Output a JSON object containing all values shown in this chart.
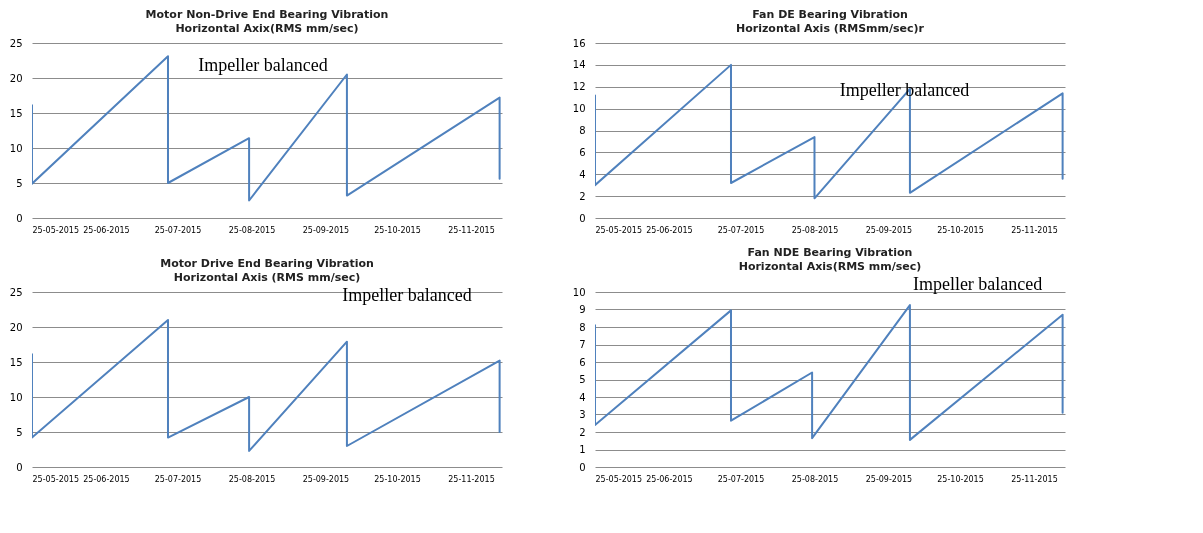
{
  "chart_data": [
    {
      "type": "line",
      "title": "Motor Non-Drive End Bearing Vibration",
      "subtitle": "Horizontal Axix(RMS mm/sec)",
      "x": [
        "2015-05-25",
        "2015-05-25",
        "2015-07-21",
        "2015-07-21",
        "2015-08-24",
        "2015-08-24",
        "2015-10-04",
        "2015-10-04",
        "2015-12-07",
        "2015-12-07"
      ],
      "series": [
        {
          "color": "#4f81bd",
          "values": [
            16.1,
            4.9,
            23.1,
            5.0,
            11.4,
            2.5,
            20.5,
            3.2,
            17.2,
            5.6
          ]
        }
      ],
      "xlim": [
        "2015-05-25",
        "2015-12-08"
      ],
      "xticks": [
        {
          "value": "2015-05-25",
          "label": "25-05-2015"
        },
        {
          "value": "2015-06-25",
          "label": "25-06-2015"
        },
        {
          "value": "2015-07-25",
          "label": "25-07-2015"
        },
        {
          "value": "2015-08-25",
          "label": "25-08-2015"
        },
        {
          "value": "2015-09-25",
          "label": "25-09-2015"
        },
        {
          "value": "2015-10-25",
          "label": "25-10-2015"
        },
        {
          "value": "2015-11-25",
          "label": "25-11-2015"
        }
      ],
      "ylim": [
        0,
        25
      ],
      "yticks": [
        0,
        5,
        10,
        15,
        20,
        25
      ],
      "grid": "y",
      "marker": "none",
      "line_style": "solid",
      "annotations": [
        {
          "text": "Impeller balanced",
          "x": "2015-07-21",
          "y": 22
        }
      ]
    },
    {
      "type": "line",
      "title": "Fan DE Bearing Vibration",
      "subtitle": "Horizontal Axis (RMSmm/sec)r",
      "x": [
        "2015-05-25",
        "2015-05-25",
        "2015-07-21",
        "2015-07-21",
        "2015-08-25",
        "2015-08-25",
        "2015-10-04",
        "2015-10-04",
        "2015-12-07",
        "2015-12-07"
      ],
      "series": [
        {
          "color": "#4f81bd",
          "values": [
            11.2,
            3.0,
            14.0,
            3.2,
            7.4,
            1.8,
            11.8,
            2.3,
            11.4,
            3.6
          ]
        }
      ],
      "xlim": [
        "2015-05-25",
        "2015-12-08"
      ],
      "xticks": [
        {
          "value": "2015-05-25",
          "label": "25-05-2015"
        },
        {
          "value": "2015-06-25",
          "label": "25-06-2015"
        },
        {
          "value": "2015-07-25",
          "label": "25-07-2015"
        },
        {
          "value": "2015-08-25",
          "label": "25-08-2015"
        },
        {
          "value": "2015-09-25",
          "label": "25-09-2015"
        },
        {
          "value": "2015-10-25",
          "label": "25-10-2015"
        },
        {
          "value": "2015-11-25",
          "label": "25-11-2015"
        }
      ],
      "ylim": [
        0,
        16
      ],
      "yticks": [
        0,
        2,
        4,
        6,
        8,
        10,
        12,
        14,
        16
      ],
      "grid": "y",
      "marker": "none",
      "line_style": "solid",
      "annotations": [
        {
          "text": "Impeller balanced",
          "x": "2015-08-25",
          "y": 6.6
        }
      ]
    },
    {
      "type": "line",
      "title": "Motor Drive End Bearing Vibration",
      "subtitle": "Horizontal Axis (RMS mm/sec)",
      "x": [
        "2015-05-25",
        "2015-05-25",
        "2015-07-21",
        "2015-07-21",
        "2015-08-24",
        "2015-08-24",
        "2015-10-04",
        "2015-10-04",
        "2015-12-07",
        "2015-12-07"
      ],
      "series": [
        {
          "color": "#4f81bd",
          "values": [
            16.1,
            4.2,
            21.0,
            4.2,
            10.0,
            2.3,
            17.9,
            3.0,
            15.2,
            5.0
          ]
        }
      ],
      "xlim": [
        "2015-05-25",
        "2015-12-08"
      ],
      "xticks": [
        {
          "value": "2015-05-25",
          "label": "25-05-2015"
        },
        {
          "value": "2015-06-25",
          "label": "25-06-2015"
        },
        {
          "value": "2015-07-25",
          "label": "25-07-2015"
        },
        {
          "value": "2015-08-25",
          "label": "25-08-2015"
        },
        {
          "value": "2015-09-25",
          "label": "25-09-2015"
        },
        {
          "value": "2015-10-25",
          "label": "25-10-2015"
        },
        {
          "value": "2015-11-25",
          "label": "25-11-2015"
        }
      ],
      "ylim": [
        0,
        25
      ],
      "yticks": [
        0,
        5,
        10,
        15,
        20,
        25
      ],
      "grid": "y",
      "marker": "none",
      "line_style": "solid",
      "annotations": [
        {
          "text": "Impeller balanced",
          "x": "2015-10-04",
          "y": 18
        }
      ]
    },
    {
      "type": "line",
      "title": "Fan NDE Bearing Vibration",
      "subtitle": "Horizontal Axis(RMS mm/sec)",
      "x": [
        "2015-05-25",
        "2015-05-25",
        "2015-07-21",
        "2015-07-21",
        "2015-08-24",
        "2015-08-24",
        "2015-10-04",
        "2015-10-04",
        "2015-12-07",
        "2015-12-07"
      ],
      "series": [
        {
          "color": "#4f81bd",
          "values": [
            8.1,
            2.4,
            8.95,
            2.65,
            5.4,
            1.65,
            9.25,
            1.55,
            8.7,
            3.1
          ]
        }
      ],
      "xlim": [
        "2015-05-25",
        "2015-12-08"
      ],
      "xticks": [
        {
          "value": "2015-05-25",
          "label": "25-05-2015"
        },
        {
          "value": "2015-06-25",
          "label": "25-06-2015"
        },
        {
          "value": "2015-07-25",
          "label": "25-07-2015"
        },
        {
          "value": "2015-08-25",
          "label": "25-08-2015"
        },
        {
          "value": "2015-09-25",
          "label": "25-09-2015"
        },
        {
          "value": "2015-10-25",
          "label": "25-10-2015"
        },
        {
          "value": "2015-11-25",
          "label": "25-11-2015"
        }
      ],
      "ylim": [
        0,
        10
      ],
      "yticks": [
        0,
        1,
        2,
        3,
        4,
        5,
        6,
        7,
        8,
        9,
        10
      ],
      "grid": "y",
      "marker": "none",
      "line_style": "solid",
      "annotations": [
        {
          "text": "Impeller balanced",
          "x": "2015-12-07",
          "y": 8.7
        }
      ]
    }
  ]
}
